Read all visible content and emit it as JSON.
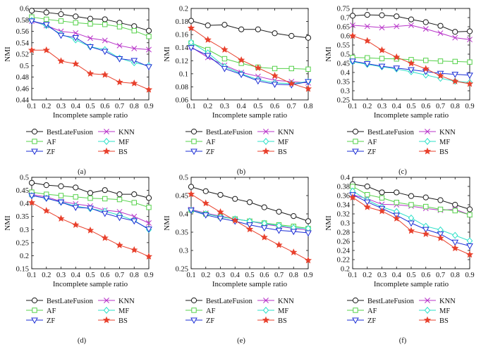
{
  "legend_labels": [
    "BestLateFusion",
    "KNN",
    "AF",
    "MF",
    "ZF",
    "BS"
  ],
  "series_styles": [
    {
      "color": "#1a1a1a",
      "marker": "circle"
    },
    {
      "color": "#b833c9",
      "marker": "x"
    },
    {
      "color": "#55d14a",
      "marker": "square"
    },
    {
      "color": "#2ce0c8",
      "marker": "diamond"
    },
    {
      "color": "#1c2fd6",
      "marker": "triangle-down"
    },
    {
      "color": "#e8402c",
      "marker": "star"
    }
  ],
  "chart_data": [
    {
      "type": "line",
      "panel_label": "(a)",
      "xlabel": "Incomplete sample ratio",
      "ylabel": "NMI",
      "x": [
        0.1,
        0.2,
        0.3,
        0.4,
        0.5,
        0.6,
        0.7,
        0.8,
        0.9
      ],
      "xticks": [
        "0.1",
        "0.2",
        "0.3",
        "0.4",
        "0.5",
        "0.6",
        "0.7",
        "0.8",
        "0.9"
      ],
      "ylim": [
        0.44,
        0.6
      ],
      "yticks": [
        "0.44",
        "0.46",
        "0.48",
        "0.5",
        "0.52",
        "0.54",
        "0.56",
        "0.58",
        "0.6"
      ],
      "series": [
        {
          "name": "BestLateFusion",
          "values": [
            0.596,
            0.593,
            0.59,
            0.586,
            0.582,
            0.581,
            0.575,
            0.569,
            0.561
          ]
        },
        {
          "name": "KNN",
          "values": [
            0.578,
            0.57,
            0.56,
            0.557,
            0.548,
            0.544,
            0.535,
            0.53,
            0.528
          ]
        },
        {
          "name": "AF",
          "values": [
            0.585,
            0.581,
            0.578,
            0.575,
            0.573,
            0.572,
            0.568,
            0.561,
            0.551
          ]
        },
        {
          "name": "MF",
          "values": [
            0.579,
            0.57,
            0.555,
            0.545,
            0.533,
            0.528,
            0.513,
            0.505,
            0.5
          ]
        },
        {
          "name": "ZF",
          "values": [
            0.578,
            0.572,
            0.553,
            0.549,
            0.533,
            0.525,
            0.512,
            0.509,
            0.498
          ]
        },
        {
          "name": "BS",
          "values": [
            0.527,
            0.527,
            0.508,
            0.503,
            0.486,
            0.484,
            0.471,
            0.469,
            0.458
          ]
        }
      ]
    },
    {
      "type": "line",
      "panel_label": "(b)",
      "xlabel": "Incomplete sample ratio",
      "ylabel": "NMI",
      "x": [
        0.1,
        0.2,
        0.3,
        0.4,
        0.5,
        0.6,
        0.7,
        0.8
      ],
      "xticks": [
        "0.1",
        "0.2",
        "0.3",
        "0.4",
        "0.5",
        "0.6",
        "0.7",
        "0.8"
      ],
      "ylim": [
        0.06,
        0.2
      ],
      "yticks": [
        "0.06",
        "0.08",
        "0.1",
        "0.12",
        "0.14",
        "0.16",
        "0.18",
        "0.2"
      ],
      "series": [
        {
          "name": "BestLateFusion",
          "values": [
            0.181,
            0.174,
            0.175,
            0.168,
            0.168,
            0.162,
            0.158,
            0.155
          ]
        },
        {
          "name": "KNN",
          "values": [
            0.141,
            0.125,
            0.113,
            0.102,
            0.096,
            0.09,
            0.088,
            0.086
          ]
        },
        {
          "name": "AF",
          "values": [
            0.147,
            0.137,
            0.123,
            0.116,
            0.11,
            0.108,
            0.108,
            0.107
          ]
        },
        {
          "name": "MF",
          "values": [
            0.148,
            0.132,
            0.111,
            0.1,
            0.091,
            0.086,
            0.085,
            0.088
          ]
        },
        {
          "name": "ZF",
          "values": [
            0.14,
            0.128,
            0.108,
            0.099,
            0.089,
            0.084,
            0.083,
            0.088
          ]
        },
        {
          "name": "BS",
          "values": [
            0.17,
            0.152,
            0.137,
            0.121,
            0.109,
            0.097,
            0.085,
            0.077
          ]
        }
      ]
    },
    {
      "type": "line",
      "panel_label": "(c)",
      "xlabel": "Incomplete sample ratio",
      "ylabel": "NMI",
      "x": [
        0.1,
        0.2,
        0.3,
        0.4,
        0.5,
        0.6,
        0.7,
        0.8,
        0.9
      ],
      "xticks": [
        "0.1",
        "0.2",
        "0.3",
        "0.4",
        "0.5",
        "0.6",
        "0.7",
        "0.8",
        "0.9"
      ],
      "ylim": [
        0.25,
        0.75
      ],
      "yticks": [
        "0.25",
        "0.3",
        "0.35",
        "0.4",
        "0.45",
        "0.5",
        "0.55",
        "0.6",
        "0.65",
        "0.7",
        "0.75"
      ],
      "series": [
        {
          "name": "BestLateFusion",
          "values": [
            0.71,
            0.715,
            0.713,
            0.707,
            0.69,
            0.675,
            0.655,
            0.622,
            0.625
          ]
        },
        {
          "name": "KNN",
          "values": [
            0.658,
            0.652,
            0.645,
            0.652,
            0.658,
            0.638,
            0.615,
            0.59,
            0.58
          ]
        },
        {
          "name": "AF",
          "values": [
            0.482,
            0.48,
            0.476,
            0.474,
            0.47,
            0.466,
            0.462,
            0.46,
            0.457
          ]
        },
        {
          "name": "MF",
          "values": [
            0.459,
            0.444,
            0.431,
            0.419,
            0.404,
            0.386,
            0.368,
            0.352,
            0.345
          ]
        },
        {
          "name": "ZF",
          "values": [
            0.462,
            0.448,
            0.434,
            0.424,
            0.415,
            0.405,
            0.395,
            0.39,
            0.385
          ]
        },
        {
          "name": "BS",
          "values": [
            0.6,
            0.573,
            0.522,
            0.484,
            0.45,
            0.42,
            0.382,
            0.352,
            0.338
          ]
        }
      ]
    },
    {
      "type": "line",
      "panel_label": "(d)",
      "xlabel": "Incomplete sample ratio",
      "ylabel": "NMI",
      "x": [
        0.1,
        0.2,
        0.3,
        0.4,
        0.5,
        0.6,
        0.7,
        0.8,
        0.9
      ],
      "xticks": [
        "0.1",
        "0.2",
        "0.3",
        "0.4",
        "0.5",
        "0.6",
        "0.7",
        "0.8",
        "0.9"
      ],
      "ylim": [
        0.15,
        0.5
      ],
      "yticks": [
        "0.15",
        "0.2",
        "0.25",
        "0.3",
        "0.35",
        "0.4",
        "0.45",
        "0.5"
      ],
      "series": [
        {
          "name": "BestLateFusion",
          "values": [
            0.479,
            0.47,
            0.466,
            0.461,
            0.44,
            0.451,
            0.435,
            0.435,
            0.421
          ]
        },
        {
          "name": "KNN",
          "values": [
            0.434,
            0.425,
            0.408,
            0.398,
            0.39,
            0.374,
            0.368,
            0.35,
            0.325
          ]
        },
        {
          "name": "AF",
          "values": [
            0.443,
            0.435,
            0.43,
            0.425,
            0.42,
            0.418,
            0.415,
            0.403,
            0.385
          ]
        },
        {
          "name": "MF",
          "values": [
            0.43,
            0.42,
            0.405,
            0.39,
            0.38,
            0.37,
            0.355,
            0.335,
            0.3
          ]
        },
        {
          "name": "ZF",
          "values": [
            0.43,
            0.42,
            0.405,
            0.385,
            0.382,
            0.362,
            0.346,
            0.333,
            0.302
          ]
        },
        {
          "name": "BS",
          "values": [
            0.403,
            0.372,
            0.342,
            0.318,
            0.297,
            0.268,
            0.24,
            0.222,
            0.197
          ]
        }
      ]
    },
    {
      "type": "line",
      "panel_label": "(e)",
      "xlabel": "Incomplete sample ratio",
      "ylabel": "NMI",
      "x": [
        0.1,
        0.2,
        0.3,
        0.4,
        0.5,
        0.6,
        0.7,
        0.8,
        0.9
      ],
      "xticks": [
        "0.1",
        "0.2",
        "0.3",
        "0.4",
        "0.5",
        "0.6",
        "0.7",
        "0.8",
        "0.9"
      ],
      "ylim": [
        0.25,
        0.5
      ],
      "yticks": [
        "0.25",
        "0.3",
        "0.35",
        "0.4",
        "0.45",
        "0.5"
      ],
      "series": [
        {
          "name": "BestLateFusion",
          "values": [
            0.474,
            0.462,
            0.452,
            0.441,
            0.432,
            0.418,
            0.406,
            0.394,
            0.38
          ]
        },
        {
          "name": "KNN",
          "values": [
            0.412,
            0.402,
            0.394,
            0.386,
            0.38,
            0.372,
            0.366,
            0.36,
            0.356
          ]
        },
        {
          "name": "AF",
          "values": [
            0.41,
            0.4,
            0.392,
            0.386,
            0.38,
            0.375,
            0.37,
            0.366,
            0.36
          ]
        },
        {
          "name": "MF",
          "values": [
            0.41,
            0.4,
            0.392,
            0.386,
            0.38,
            0.374,
            0.368,
            0.362,
            0.36
          ]
        },
        {
          "name": "ZF",
          "values": [
            0.41,
            0.397,
            0.388,
            0.38,
            0.37,
            0.362,
            0.355,
            0.352,
            0.348
          ]
        },
        {
          "name": "BS",
          "values": [
            0.454,
            0.429,
            0.405,
            0.382,
            0.358,
            0.336,
            0.315,
            0.295,
            0.273
          ]
        }
      ]
    },
    {
      "type": "line",
      "panel_label": "(f)",
      "xlabel": "Incomplete sample ratio",
      "ylabel": "NMI",
      "x": [
        0.1,
        0.2,
        0.3,
        0.4,
        0.5,
        0.6,
        0.7,
        0.8,
        0.9
      ],
      "xticks": [
        "0.1",
        "0.2",
        "0.3",
        "0.4",
        "0.5",
        "0.6",
        "0.7",
        "0.8",
        "0.9"
      ],
      "ylim": [
        0.2,
        0.4
      ],
      "yticks": [
        "0.2",
        "0.22",
        "0.24",
        "0.26",
        "0.28",
        "0.3",
        "0.32",
        "0.34",
        "0.36",
        "0.38",
        "0.4"
      ],
      "series": [
        {
          "name": "BestLateFusion",
          "values": [
            0.385,
            0.38,
            0.367,
            0.367,
            0.359,
            0.356,
            0.35,
            0.34,
            0.33
          ]
        },
        {
          "name": "KNN",
          "values": [
            0.362,
            0.353,
            0.341,
            0.34,
            0.337,
            0.332,
            0.328,
            0.33,
            0.318
          ]
        },
        {
          "name": "AF",
          "values": [
            0.38,
            0.362,
            0.355,
            0.345,
            0.34,
            0.336,
            0.33,
            0.327,
            0.318
          ]
        },
        {
          "name": "MF",
          "values": [
            0.37,
            0.35,
            0.335,
            0.325,
            0.311,
            0.293,
            0.285,
            0.273,
            0.261
          ]
        },
        {
          "name": "ZF",
          "values": [
            0.362,
            0.346,
            0.332,
            0.317,
            0.3,
            0.286,
            0.276,
            0.258,
            0.25
          ]
        },
        {
          "name": "BS",
          "values": [
            0.356,
            0.335,
            0.326,
            0.31,
            0.283,
            0.276,
            0.267,
            0.245,
            0.231
          ]
        }
      ]
    }
  ]
}
